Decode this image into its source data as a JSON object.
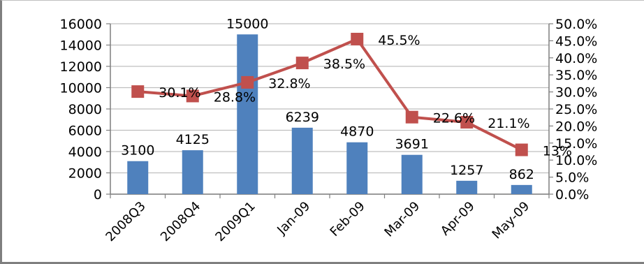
{
  "chart_data": {
    "type": "bar",
    "categories": [
      "2008Q3",
      "2008Q4",
      "2009Q1",
      "Jan-09",
      "Feb-09",
      "Mar-09",
      "Apr-09",
      "May-09"
    ],
    "series": [
      {
        "type": "bar",
        "axis": "left",
        "color": "#4f81bd",
        "values": [
          3100,
          4125,
          15000,
          6239,
          4870,
          3691,
          1257,
          862
        ],
        "labels": [
          "3100",
          "4125",
          "15000",
          "6239",
          "4870",
          "3691",
          "1257",
          "862"
        ]
      },
      {
        "type": "line",
        "axis": "right",
        "color": "#c0504d",
        "values": [
          30.1,
          28.8,
          32.8,
          38.5,
          45.5,
          22.6,
          21.1,
          13
        ],
        "labels": [
          "30.1%",
          "28.8%",
          "32.8%",
          "38.5%",
          "45.5%",
          "22.6%",
          "21.1%",
          "13%"
        ]
      }
    ],
    "y_left": {
      "range": [
        0,
        16000
      ],
      "ticks": [
        "0",
        "2000",
        "4000",
        "6000",
        "8000",
        "10000",
        "12000",
        "14000",
        "16000"
      ]
    },
    "y_right": {
      "range": [
        0,
        50
      ],
      "ticks": [
        "0.0%",
        "5.0%",
        "10.0%",
        "15.0%",
        "20.0%",
        "25.0%",
        "30.0%",
        "35.0%",
        "40.0%",
        "45.0%",
        "50.0%"
      ]
    },
    "grid": true,
    "legend": "none"
  }
}
